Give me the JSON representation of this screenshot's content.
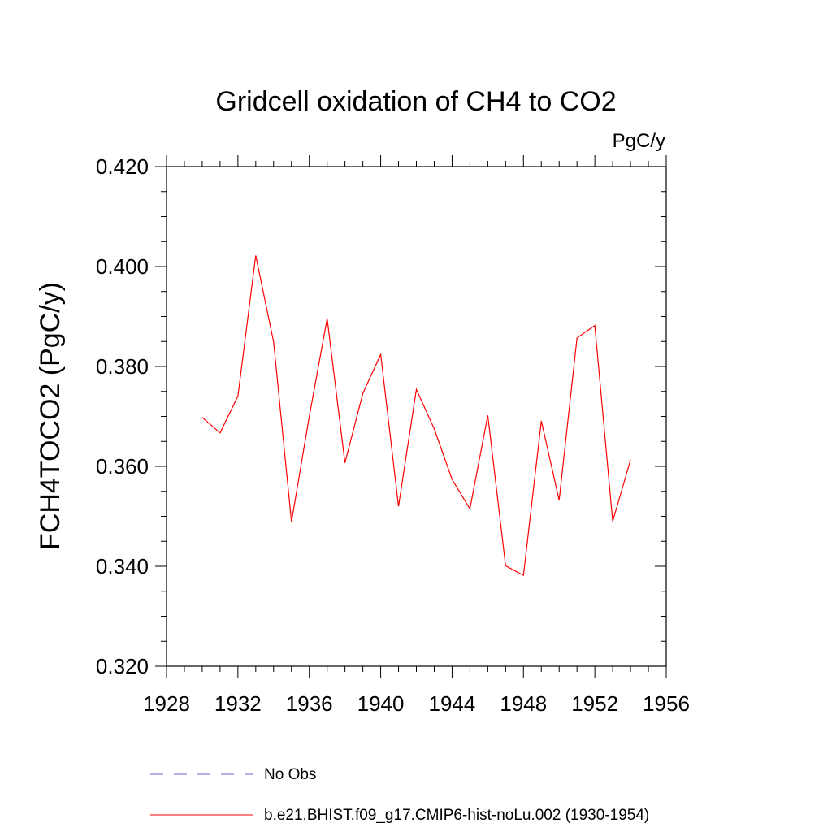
{
  "chart_data": {
    "type": "line",
    "title": "Gridcell oxidation of CH4 to CO2",
    "units_label": "PgC/y",
    "xlabel": "",
    "ylabel": "FCH4TOCO2  (PgC/y)",
    "xlim": [
      1928,
      1956
    ],
    "ylim": [
      0.32,
      0.42
    ],
    "x_ticks": [
      1928,
      1932,
      1936,
      1940,
      1944,
      1948,
      1952,
      1956
    ],
    "x_tick_labels": [
      "1928",
      "1932",
      "1936",
      "1940",
      "1944",
      "1948",
      "1952",
      "1956"
    ],
    "y_ticks": [
      0.32,
      0.34,
      0.36,
      0.38,
      0.4,
      0.42
    ],
    "y_tick_labels": [
      "0.320",
      "0.340",
      "0.360",
      "0.380",
      "0.400",
      "0.420"
    ],
    "grid": false,
    "legend_position": "bottom",
    "legend": [
      {
        "label": "No Obs",
        "color": "#6666cc",
        "style": "dashed"
      },
      {
        "label": "b.e21.BHIST.f09_g17.CMIP6-hist-noLu.002 (1930-1954)",
        "color": "#ff0000",
        "style": "solid"
      }
    ],
    "series": [
      {
        "name": "b.e21.BHIST.f09_g17.CMIP6-hist-noLu.002 (1930-1954)",
        "color": "#ff0000",
        "x": [
          1930,
          1931,
          1932,
          1933,
          1934,
          1935,
          1936,
          1937,
          1938,
          1939,
          1940,
          1941,
          1942,
          1943,
          1944,
          1945,
          1946,
          1947,
          1948,
          1949,
          1950,
          1951,
          1952,
          1953,
          1954
        ],
        "y": [
          0.3698,
          0.3667,
          0.3741,
          0.4022,
          0.3849,
          0.3489,
          0.37,
          0.3896,
          0.3607,
          0.3746,
          0.3824,
          0.352,
          0.3754,
          0.3675,
          0.3574,
          0.3515,
          0.3702,
          0.3401,
          0.3382,
          0.3691,
          0.3532,
          0.3857,
          0.3882,
          0.349,
          0.3613
        ]
      }
    ]
  }
}
